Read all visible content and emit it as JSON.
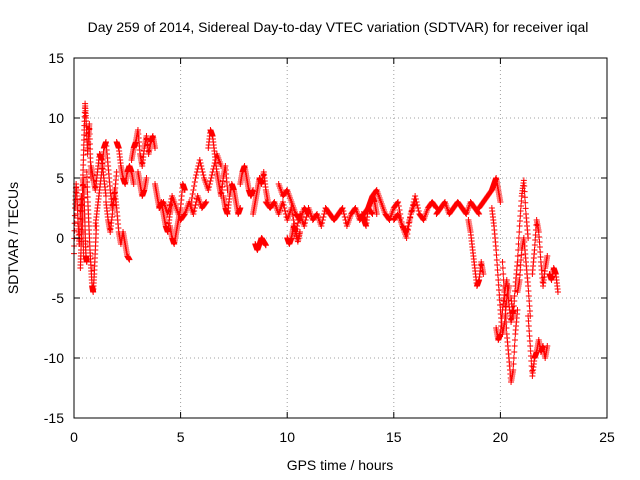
{
  "chart_data": {
    "type": "scatter",
    "title": "Day 259 of 2014, Sidereal Day-to-day VTEC variation (SDTVAR) for receiver iqal",
    "xlabel": "GPS time / hours",
    "ylabel": "SDTVAR / TECUs",
    "xlim": [
      0,
      25
    ],
    "ylim": [
      -15,
      15
    ],
    "xticks": [
      0,
      5,
      10,
      15,
      20,
      25
    ],
    "yticks": [
      -15,
      -10,
      -5,
      0,
      5,
      10,
      15
    ],
    "grid": true,
    "marker": "+",
    "color": "#ff0000",
    "series": [
      {
        "name": "SDTVAR",
        "segments": [
          {
            "x": [
              0.0,
              0.05,
              0.1,
              0.15,
              0.2,
              0.25,
              0.3,
              0.35,
              0.4,
              0.45
            ],
            "y": [
              -1.3,
              2.5,
              4.5,
              3.0,
              1.0,
              -0.5,
              2.0,
              3.5,
              1.5,
              -1.5
            ]
          },
          {
            "x": [
              0.3,
              0.33,
              0.36,
              0.4,
              0.43,
              0.46,
              0.5,
              0.53,
              0.56,
              0.6
            ],
            "y": [
              -2.5,
              -1.0,
              1.0,
              3.0,
              5.0,
              4.0,
              2.0,
              0.0,
              -1.5,
              -2.0
            ]
          },
          {
            "x": [
              0.4,
              0.44,
              0.48,
              0.52,
              0.56,
              0.6,
              0.64,
              0.68,
              0.72,
              0.76,
              0.8
            ],
            "y": [
              4.0,
              6.5,
              9.0,
              11.2,
              10.0,
              8.5,
              7.0,
              8.5,
              9.5,
              7.0,
              5.0
            ]
          },
          {
            "x": [
              0.6,
              0.65,
              0.7,
              0.75,
              0.8,
              0.85,
              0.9,
              0.95,
              1.0,
              1.05
            ],
            "y": [
              5.5,
              3.0,
              1.0,
              -1.0,
              -2.5,
              -4.0,
              -4.5,
              -3.0,
              -1.0,
              1.0
            ]
          },
          {
            "x": [
              0.8,
              0.9,
              1.0,
              1.1,
              1.2,
              1.3,
              1.4,
              1.5
            ],
            "y": [
              6.0,
              5.0,
              4.0,
              5.5,
              7.0,
              6.5,
              5.0,
              3.5
            ]
          },
          {
            "x": [
              1.0,
              1.1,
              1.2,
              1.3,
              1.4,
              1.5,
              1.6,
              1.7,
              1.8,
              1.9,
              2.0
            ],
            "y": [
              1.0,
              2.5,
              4.0,
              5.5,
              7.5,
              8.0,
              6.0,
              4.0,
              2.5,
              3.5,
              5.5
            ]
          },
          {
            "x": [
              1.5,
              1.6,
              1.7,
              1.8,
              1.9,
              2.0,
              2.1,
              2.2,
              2.3,
              2.4,
              2.5,
              2.6
            ],
            "y": [
              3.0,
              1.5,
              0.5,
              2.0,
              4.0,
              2.5,
              0.5,
              -0.5,
              0.5,
              -0.5,
              -1.5,
              -1.8
            ]
          },
          {
            "x": [
              2.0,
              2.1,
              2.2,
              2.3,
              2.4,
              2.5,
              2.6,
              2.7,
              2.8
            ],
            "y": [
              8.0,
              7.5,
              6.0,
              5.0,
              4.5,
              5.5,
              6.0,
              5.5,
              4.5
            ]
          },
          {
            "x": [
              2.7,
              2.8,
              2.9,
              3.0,
              3.1,
              3.2,
              3.3,
              3.4,
              3.5,
              3.6,
              3.7,
              3.8
            ],
            "y": [
              6.5,
              7.5,
              8.0,
              9.0,
              7.0,
              6.0,
              7.5,
              8.5,
              7.0,
              8.0,
              8.5,
              7.5
            ]
          },
          {
            "x": [
              3.0,
              3.1,
              3.2,
              3.3,
              3.4
            ],
            "y": [
              5.5,
              4.5,
              3.5,
              4.0,
              5.0
            ]
          },
          {
            "x": [
              3.8,
              3.9,
              4.0,
              4.1,
              4.2,
              4.3,
              4.4,
              4.5,
              4.6
            ],
            "y": [
              4.5,
              3.5,
              2.5,
              3.0,
              2.0,
              1.0,
              0.5,
              2.0,
              3.0
            ]
          },
          {
            "x": [
              4.0,
              4.2,
              4.4,
              4.6,
              4.8,
              5.0,
              5.2,
              5.4,
              5.6,
              5.8,
              6.0,
              6.2
            ],
            "y": [
              2.5,
              3.0,
              2.0,
              3.5,
              2.5,
              1.5,
              2.0,
              3.0,
              2.0,
              3.5,
              2.5,
              3.0
            ]
          },
          {
            "x": [
              4.5,
              4.6,
              4.7,
              4.8,
              4.9,
              5.0,
              5.1,
              5.2
            ],
            "y": [
              1.0,
              0.0,
              -0.5,
              0.5,
              1.5,
              2.5,
              4.5,
              4.0
            ]
          },
          {
            "x": [
              5.5,
              5.7,
              5.9,
              6.1,
              6.3,
              6.5,
              6.7,
              6.9
            ],
            "y": [
              3.0,
              5.0,
              6.5,
              5.0,
              4.0,
              5.5,
              7.0,
              6.0
            ]
          },
          {
            "x": [
              6.3,
              6.4,
              6.5,
              6.6,
              6.7,
              6.8,
              6.9,
              7.0,
              7.1,
              7.2
            ],
            "y": [
              7.5,
              9.0,
              8.5,
              7.0,
              5.5,
              4.5,
              3.5,
              5.0,
              6.0,
              4.0
            ]
          },
          {
            "x": [
              7.0,
              7.1,
              7.2,
              7.3,
              7.4,
              7.5,
              7.6,
              7.7,
              7.8
            ],
            "y": [
              3.5,
              2.5,
              2.0,
              3.5,
              4.5,
              4.0,
              3.0,
              2.0,
              2.5
            ]
          },
          {
            "x": [
              7.8,
              7.9,
              8.0,
              8.1,
              8.2,
              8.3,
              8.4
            ],
            "y": [
              4.5,
              5.5,
              6.0,
              5.0,
              4.0,
              3.5,
              4.0
            ]
          },
          {
            "x": [
              8.4,
              8.5,
              8.6,
              8.7,
              8.8,
              8.9,
              9.0,
              9.1
            ],
            "y": [
              2.0,
              3.0,
              4.0,
              5.0,
              4.5,
              5.5,
              4.0,
              3.0
            ]
          },
          {
            "x": [
              8.5,
              8.6,
              8.7,
              8.8,
              8.9,
              9.0
            ],
            "y": [
              -0.5,
              -1.0,
              -0.5,
              0.0,
              -0.3,
              -0.6
            ]
          },
          {
            "x": [
              9.0,
              9.2,
              9.4,
              9.6,
              9.8,
              10.0,
              10.2,
              10.4,
              10.6,
              10.8,
              11.0,
              11.2,
              11.4,
              11.6,
              11.8,
              12.0
            ],
            "y": [
              3.0,
              2.5,
              3.0,
              2.0,
              3.0,
              1.5,
              2.5,
              0.5,
              2.0,
              1.0,
              2.5,
              1.5,
              2.0,
              1.0,
              2.5,
              2.0
            ]
          },
          {
            "x": [
              9.6,
              9.8,
              10.0,
              10.2,
              10.4,
              10.6,
              10.8,
              11.0
            ],
            "y": [
              4.5,
              3.5,
              4.0,
              3.0,
              2.0,
              1.5,
              2.5,
              2.0
            ]
          },
          {
            "x": [
              10.0,
              10.1,
              10.2,
              10.3,
              10.4,
              10.5,
              10.6
            ],
            "y": [
              0.0,
              -0.5,
              0.0,
              1.0,
              0.5,
              -0.3,
              0.5
            ]
          },
          {
            "x": [
              12.0,
              12.2,
              12.4,
              12.6,
              12.8,
              13.0,
              13.2,
              13.4,
              13.6,
              13.8,
              14.0
            ],
            "y": [
              2.0,
              1.5,
              2.0,
              2.5,
              1.0,
              2.0,
              2.5,
              1.5,
              2.0,
              2.5,
              2.0
            ]
          },
          {
            "x": [
              13.5,
              13.6,
              13.7,
              13.8,
              13.9,
              14.0,
              14.1,
              14.2
            ],
            "y": [
              2.0,
              1.5,
              1.0,
              2.5,
              3.0,
              3.5,
              3.0,
              2.0
            ]
          },
          {
            "x": [
              14.0,
              14.2,
              14.4,
              14.6,
              14.8,
              15.0,
              15.2,
              15.4,
              15.6,
              15.8,
              16.0
            ],
            "y": [
              3.5,
              4.0,
              3.0,
              2.0,
              1.5,
              2.5,
              3.0,
              1.0,
              0.5,
              2.0,
              3.0
            ]
          },
          {
            "x": [
              15.0,
              15.2,
              15.4,
              15.6,
              15.8,
              16.0,
              16.2,
              16.4,
              16.6,
              16.8,
              17.0
            ],
            "y": [
              1.5,
              2.0,
              1.0,
              0.0,
              2.0,
              3.5,
              2.0,
              1.5,
              2.5,
              3.0,
              2.5
            ]
          },
          {
            "x": [
              17.0,
              17.2,
              17.4,
              17.6,
              17.8,
              18.0,
              18.2,
              18.4,
              18.6,
              18.8,
              19.0
            ],
            "y": [
              2.0,
              2.5,
              3.0,
              2.0,
              2.5,
              3.0,
              2.5,
              2.0,
              3.0,
              2.5,
              2.0
            ]
          },
          {
            "x": [
              18.5,
              18.6,
              18.7,
              18.8,
              18.9,
              19.0,
              19.1,
              19.2
            ],
            "y": [
              1.5,
              0.5,
              -1.0,
              -2.5,
              -4.0,
              -3.5,
              -2.0,
              -3.0
            ]
          },
          {
            "x": [
              19.0,
              19.2,
              19.4,
              19.6,
              19.7,
              19.8,
              19.9,
              20.0
            ],
            "y": [
              2.5,
              3.0,
              3.5,
              4.0,
              4.5,
              5.0,
              4.0,
              3.0
            ]
          },
          {
            "x": [
              19.6,
              19.7,
              19.8,
              19.9,
              20.0,
              20.1,
              20.2,
              20.3,
              20.4
            ],
            "y": [
              2.5,
              1.0,
              -1.0,
              -3.5,
              -6.0,
              -8.0,
              -7.0,
              -5.0,
              -4.0
            ]
          },
          {
            "x": [
              19.8,
              19.9,
              20.0,
              20.1,
              20.2,
              20.3,
              20.4,
              20.5,
              20.6
            ],
            "y": [
              -7.5,
              -8.5,
              -8.0,
              -6.0,
              -4.5,
              -3.5,
              -5.5,
              -7.0,
              -6.0
            ]
          },
          {
            "x": [
              20.1,
              20.2,
              20.3,
              20.4,
              20.5,
              20.6,
              20.7,
              20.8
            ],
            "y": [
              -2.0,
              -5.0,
              -8.0,
              -10.0,
              -12.0,
              -11.0,
              -8.0,
              -6.0
            ]
          },
          {
            "x": [
              20.5,
              20.6,
              20.7,
              20.8,
              20.9,
              21.0,
              21.1,
              21.2,
              21.3
            ],
            "y": [
              -5.0,
              -6.5,
              -4.0,
              -2.0,
              1.0,
              3.5,
              4.8,
              2.0,
              0.0
            ]
          },
          {
            "x": [
              20.8,
              20.9,
              21.0,
              21.1,
              21.2,
              21.3,
              21.4
            ],
            "y": [
              -4.5,
              -3.5,
              -1.0,
              0.0,
              -2.0,
              -4.0,
              -6.5
            ]
          },
          {
            "x": [
              21.3,
              21.4,
              21.5,
              21.6,
              21.7,
              21.8,
              21.9,
              22.0,
              22.1,
              22.2
            ],
            "y": [
              -6.5,
              -9.0,
              -11.5,
              -10.0,
              -9.5,
              -8.5,
              -9.5,
              -9.0,
              -10.0,
              -9.0
            ]
          },
          {
            "x": [
              21.5,
              21.6,
              21.7,
              21.8,
              21.9,
              22.0,
              22.1,
              22.2
            ],
            "y": [
              -3.0,
              -1.0,
              1.5,
              0.5,
              -2.0,
              -4.0,
              -2.5,
              -1.5
            ]
          },
          {
            "x": [
              22.3,
              22.4,
              22.5,
              22.6,
              22.7
            ],
            "y": [
              -3.0,
              -3.5,
              -2.5,
              -3.0,
              -4.5
            ]
          }
        ]
      }
    ]
  }
}
